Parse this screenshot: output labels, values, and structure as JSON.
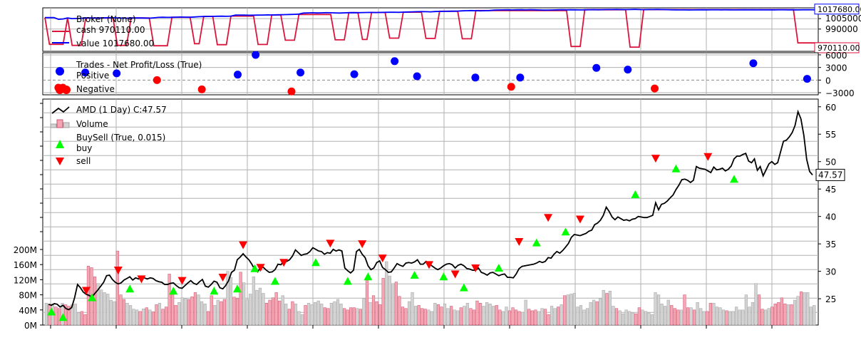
{
  "chart_data": [
    {
      "type": "line",
      "panel": "broker",
      "legend": [
        "Broker (None)",
        "cash 970110.00",
        "value 1017680.00"
      ],
      "y_ticks": [
        "1005000",
        "990000"
      ],
      "ylim": [
        958000,
        1020500
      ],
      "last_value_tag": "1017680.00",
      "last_cash_tag": "970110.00",
      "series": [
        {
          "name": "value",
          "color": "#0000ff",
          "values": [
            1006500,
            1006500,
            1006500,
            1004000,
            1004500,
            1006000,
            1005000,
            1005200,
            1005400,
            1006000,
            1006000,
            1005800,
            1006000,
            1006200,
            1006400,
            1006300,
            1006100,
            1005800,
            1005600,
            1005900,
            1006000,
            1006100,
            1005800,
            1005600,
            1006200,
            1006800,
            1007000,
            1006800,
            1006900,
            1007100,
            1007300,
            1007100,
            1007000,
            1007400,
            1007800,
            1008000,
            1008100,
            1008200,
            1008400,
            1008500,
            1008300,
            1008600,
            1010000,
            1010200,
            1010100,
            1009800,
            1009900,
            1010100,
            1010200,
            1010400,
            1010300,
            1010500,
            1010600,
            1010800,
            1011000,
            1011200,
            1011500,
            1013000,
            1013200,
            1013400,
            1013100,
            1013300,
            1013500,
            1013400,
            1013200,
            1013000,
            1013300,
            1013500,
            1013600,
            1013500,
            1013700,
            1013800,
            1013900,
            1013700,
            1013900,
            1014000,
            1014100,
            1014200,
            1014000,
            1014400,
            1014600,
            1014800,
            1015000,
            1015100,
            1015000,
            1014800,
            1015200,
            1015400,
            1015500,
            1015600,
            1015700,
            1015800,
            1016200,
            1016400,
            1016600,
            1016400,
            1016200,
            1016400,
            1016600,
            1017200,
            1017400,
            1017500,
            1017600,
            1017400,
            1017600,
            1017700,
            1017500,
            1017800,
            1017600,
            1017400,
            1017200,
            1017300,
            1017400,
            1017600,
            1017800,
            1017600,
            1017700,
            1017600,
            1017500,
            1017600,
            1017800,
            1017900,
            1017700,
            1017900,
            1018000,
            1018000,
            1018100,
            1018000,
            1017900,
            1018000,
            1018200,
            1018000,
            1017800,
            1018000,
            1018000,
            1018100,
            1018000,
            1017900,
            1017700,
            1017600,
            1017500,
            1017600,
            1017400,
            1017500,
            1017600,
            1017700,
            1017600,
            1017700,
            1017800,
            1017600,
            1017700,
            1017600,
            1017500,
            1017600,
            1017700,
            1017600,
            1017700,
            1017600,
            1017700,
            1017600,
            1017700,
            1017600,
            1017800,
            1017700,
            1017600,
            1017700,
            1017600,
            1017700,
            1017800,
            1017700,
            1017680
          ]
        },
        {
          "name": "cash",
          "color": "#dc143c",
          "values": [
            1006500,
            968000,
            968000,
            968000,
            968000,
            1006000,
            966500,
            966500,
            966500,
            1006000,
            1006000,
            1006000,
            1006000,
            1006000,
            1006000,
            1006000,
            966500,
            966500,
            966500,
            1006000,
            1006000,
            1006000,
            1006000,
            1006000,
            966000,
            966000,
            966000,
            966000,
            1007000,
            1007000,
            1007000,
            1007000,
            1007000,
            969000,
            969000,
            1008200,
            1008200,
            1008200,
            967500,
            967500,
            967500,
            1008600,
            1008600,
            1008600,
            1008600,
            1008600,
            1008600,
            967800,
            967800,
            967800,
            1010300,
            1010300,
            1010300,
            974000,
            974000,
            974000,
            1011000,
            1011000,
            1011000,
            1011000,
            1011000,
            1011000,
            1011000,
            1011000,
            974500,
            974500,
            974500,
            1013500,
            1013500,
            1013500,
            975000,
            975000,
            1013800,
            1013800,
            1013800,
            1013800,
            977000,
            977000,
            977000,
            1014200,
            1014200,
            1014200,
            1014200,
            1014200,
            976500,
            976500,
            976500,
            1015600,
            1015600,
            1015600,
            1015600,
            1015600,
            976000,
            976000,
            976000,
            1016600,
            1016600,
            1016600,
            1016600,
            1016600,
            1016600,
            1016600,
            1016600,
            1016600,
            1016600,
            1016600,
            1016600,
            1016600,
            1016600,
            1016600,
            1016600,
            1016600,
            1016600,
            1016600,
            1016600,
            1016600,
            965000,
            965000,
            965000,
            1017700,
            1017700,
            1017700,
            1017700,
            1017700,
            1017700,
            1017700,
            1017700,
            1017700,
            1017700,
            964000,
            964000,
            964000,
            1017900,
            1017900,
            1017900,
            1017900,
            1017900,
            1017900,
            1017900,
            1017900,
            1017900,
            1017900,
            1017900,
            1017900,
            1017900,
            1017900,
            1017900,
            1017900,
            1017900,
            1017900,
            1017900,
            1017900,
            1017900,
            1017900,
            1017900,
            1017900,
            1017900,
            1017900,
            1017900,
            1017900,
            1017900,
            1017900,
            1017900,
            1017900,
            1017900,
            1017900,
            970110,
            970110,
            970110,
            970110,
            970110,
            970110,
            970110,
            970110
          ]
        }
      ]
    },
    {
      "type": "scatter",
      "panel": "trades",
      "legend": [
        "Trades - Net Profit/Loss (True)",
        "Positive",
        "Negative"
      ],
      "y_ticks": [
        "6000",
        "3000",
        "0",
        "−3000"
      ],
      "ylim": [
        -3500,
        6500
      ],
      "positive": {
        "color": "#0000ff",
        "points": [
          [
            9,
            1800
          ],
          [
            16,
            1600
          ],
          [
            43,
            1300
          ],
          [
            47,
            6000
          ],
          [
            57,
            1800
          ],
          [
            69,
            1400
          ],
          [
            78,
            4500
          ],
          [
            83,
            900
          ],
          [
            96,
            600
          ],
          [
            106,
            600
          ],
          [
            123,
            2900
          ],
          [
            130,
            2500
          ],
          [
            158,
            4000
          ],
          [
            170,
            300
          ]
        ]
      },
      "negative": {
        "color": "#ff0000",
        "points": [
          [
            3,
            -1800
          ],
          [
            4,
            -1800
          ],
          [
            25,
            0
          ],
          [
            35,
            -2200
          ],
          [
            55,
            -2700
          ],
          [
            104,
            -1600
          ],
          [
            136,
            -2000
          ]
        ]
      }
    },
    {
      "type": "line",
      "panel": "price",
      "legend": [
        "AMD (1 Day) C:47.57",
        "Volume",
        "BuySell (True, 0.015)",
        "buy",
        "sell"
      ],
      "y_ticks": [
        "60",
        "55",
        "50",
        "45",
        "40",
        "35",
        "30",
        "25"
      ],
      "ylim": [
        20.2,
        61.4
      ],
      "volume_ticks": [
        "200M",
        "160M",
        "120M",
        "80M",
        "40M",
        "0M"
      ],
      "last_close_tag": "47.57",
      "close": [
        24.0,
        23.8,
        24.1,
        24.0,
        23.5,
        23.8,
        23.2,
        23.0,
        23.4,
        25.2,
        27.6,
        27.0,
        26.2,
        25.8,
        25.6,
        25.3,
        26.0,
        26.6,
        27.3,
        28.0,
        29.2,
        29.3,
        28.5,
        28.0,
        27.7,
        27.9,
        28.4,
        28.7,
        29.0,
        28.4,
        28.8,
        28.6,
        29.0,
        28.8,
        28.6,
        28.8,
        28.7,
        28.3,
        28.1,
        28.0,
        27.6,
        27.6,
        27.8,
        27.9,
        27.4,
        27.0,
        26.9,
        27.4,
        27.9,
        28.3,
        27.8,
        27.6,
        28.1,
        28.5,
        27.3,
        27.1,
        27.6,
        28.2,
        28.0,
        27.0,
        26.8,
        27.4,
        28.3,
        29.8,
        30.2,
        32.1,
        32.6,
        33.2,
        32.6,
        32.1,
        31.3,
        30.3,
        29.9,
        30.7,
        30.7,
        30.2,
        29.8,
        29.9,
        30.3,
        31.3,
        31.2,
        31.8,
        31.8,
        32.1,
        32.8,
        33.9,
        33.4,
        32.9,
        33.1,
        33.2,
        33.6,
        34.3,
        34.0,
        33.7,
        33.6,
        33.1,
        33.4,
        33.3,
        34.0,
        33.7,
        33.9,
        33.7,
        30.6,
        30.1,
        29.7,
        30.2,
        33.6,
        34.0,
        33.1,
        32.5,
        31.0,
        30.3,
        30.6,
        31.6,
        31.9,
        30.7,
        30.3,
        29.8,
        29.9,
        30.6,
        31.4,
        31.1,
        30.9,
        31.5,
        31.6,
        31.5,
        31.7,
        32.1,
        31.3,
        31.3,
        31.8,
        31.4,
        31.0,
        30.6,
        30.3,
        30.6,
        31.0,
        31.3,
        31.4,
        31.2,
        30.6,
        31.1,
        31.3,
        31.0,
        30.5,
        30.4,
        30.2,
        30.2,
        30.6,
        29.8,
        29.6,
        29.3,
        29.7,
        29.8,
        29.5,
        29.2,
        29.4,
        29.5,
        28.9,
        28.9,
        28.8,
        29.5,
        30.5,
        30.9,
        31.0,
        31.1,
        31.2,
        31.3,
        31.5,
        31.8,
        31.6,
        31.8,
        32.5,
        32.4,
        33.1,
        33.6,
        33.3,
        33.8,
        34.4,
        35.1,
        36.2,
        36.7,
        36.6,
        36.5,
        36.7,
        36.9,
        37.3,
        37.5,
        38.5,
        38.8,
        39.3,
        40.2,
        41.7,
        40.9,
        39.9,
        39.4,
        39.9,
        39.6,
        39.3,
        39.4,
        39.2,
        39.5,
        39.6,
        40.0,
        39.9,
        39.8,
        39.8,
        40.0,
        40.2,
        42.5,
        41.2,
        42.2,
        42.4,
        42.8,
        43.4,
        43.9,
        44.9,
        45.7,
        46.7,
        46.8,
        46.6,
        46.2,
        46.6,
        49.1,
        48.8,
        48.7,
        48.6,
        48.3,
        48.0,
        49.0,
        48.5,
        48.6,
        48.8,
        48.3,
        48.6,
        49.2,
        50.5,
        51.0,
        51.0,
        51.3,
        51.5,
        50.1,
        49.8,
        50.5,
        48.4,
        49.1,
        47.4,
        48.5,
        49.6,
        50.0,
        49.5,
        49.8,
        51.8,
        53.7,
        53.9,
        54.5,
        55.3,
        56.6,
        59.1,
        57.8,
        54.8,
        50.4,
        48.2,
        47.57
      ],
      "volume_m": [
        58,
        55,
        56,
        48,
        44,
        58,
        54,
        50,
        54,
        56,
        33,
        36,
        28,
        156,
        152,
        128,
        110,
        93,
        86,
        82,
        66,
        62,
        196,
        80,
        68,
        58,
        52,
        42,
        40,
        36,
        43,
        46,
        40,
        35,
        54,
        58,
        42,
        48,
        135,
        80,
        52,
        60,
        72,
        70,
        68,
        75,
        86,
        80,
        62,
        56,
        36,
        78,
        52,
        66,
        62,
        68,
        142,
        126,
        74,
        70,
        140,
        112,
        68,
        82,
        128,
        92,
        98,
        84,
        58,
        66,
        72,
        86,
        64,
        78,
        56,
        42,
        62,
        56,
        36,
        28,
        52,
        58,
        54,
        60,
        64,
        56,
        46,
        44,
        58,
        62,
        68,
        56,
        44,
        40,
        46,
        46,
        44,
        42,
        70,
        120,
        60,
        78,
        62,
        54,
        124,
        168,
        130,
        110,
        114,
        76,
        48,
        44,
        62,
        86,
        50,
        52,
        44,
        42,
        40,
        36,
        58,
        54,
        48,
        56,
        44,
        50,
        40,
        38,
        46,
        50,
        58,
        44,
        40,
        64,
        58,
        50,
        60,
        56,
        50,
        52,
        40,
        36,
        48,
        38,
        46,
        40,
        36,
        34,
        66,
        42,
        38,
        40,
        36,
        44,
        42,
        28,
        50,
        44,
        48,
        54,
        78,
        80,
        82,
        84,
        48,
        52,
        40,
        44,
        60,
        66,
        62,
        70,
        92,
        84,
        90,
        50,
        44,
        38,
        30,
        40,
        36,
        32,
        30,
        46,
        40,
        36,
        32,
        28,
        86,
        80,
        56,
        50,
        66,
        52,
        44,
        40,
        40,
        80,
        46,
        46,
        40,
        60,
        44,
        36,
        36,
        58,
        58,
        48,
        46,
        40,
        38,
        36,
        36,
        48,
        40,
        40,
        80,
        48,
        60,
        110,
        80,
        42,
        40,
        44,
        48,
        56,
        60,
        72,
        56,
        54,
        54,
        66,
        76,
        88,
        86,
        86,
        48,
        52
      ],
      "buys": [
        [
          1,
          22.6
        ],
        [
          5,
          21.6
        ],
        [
          15,
          25.2
        ],
        [
          28,
          26.8
        ],
        [
          43,
          26.4
        ],
        [
          57,
          26.4
        ],
        [
          65,
          26.8
        ],
        [
          71,
          30.5
        ],
        [
          78,
          28.2
        ],
        [
          92,
          31.6
        ],
        [
          103,
          28.2
        ],
        [
          110,
          29.0
        ],
        [
          126,
          29.3
        ],
        [
          136,
          29.0
        ],
        [
          143,
          27.0
        ],
        [
          155,
          30.6
        ],
        [
          168,
          35.2
        ],
        [
          178,
          37.2
        ],
        [
          202,
          44.0
        ],
        [
          216,
          48.7
        ],
        [
          236,
          46.8
        ]
      ],
      "sells": [
        [
          13,
          26.5
        ],
        [
          24,
          30.2
        ],
        [
          32,
          28.6
        ],
        [
          46,
          28.3
        ],
        [
          60,
          28.9
        ],
        [
          67,
          34.8
        ],
        [
          73,
          30.7
        ],
        [
          81,
          31.6
        ],
        [
          97,
          35.1
        ],
        [
          108,
          35.0
        ],
        [
          115,
          32.4
        ],
        [
          131,
          31.2
        ],
        [
          140,
          29.5
        ],
        [
          147,
          30.6
        ],
        [
          162,
          35.4
        ],
        [
          172,
          39.8
        ],
        [
          183,
          39.5
        ],
        [
          209,
          50.6
        ],
        [
          227,
          50.9
        ]
      ]
    }
  ]
}
